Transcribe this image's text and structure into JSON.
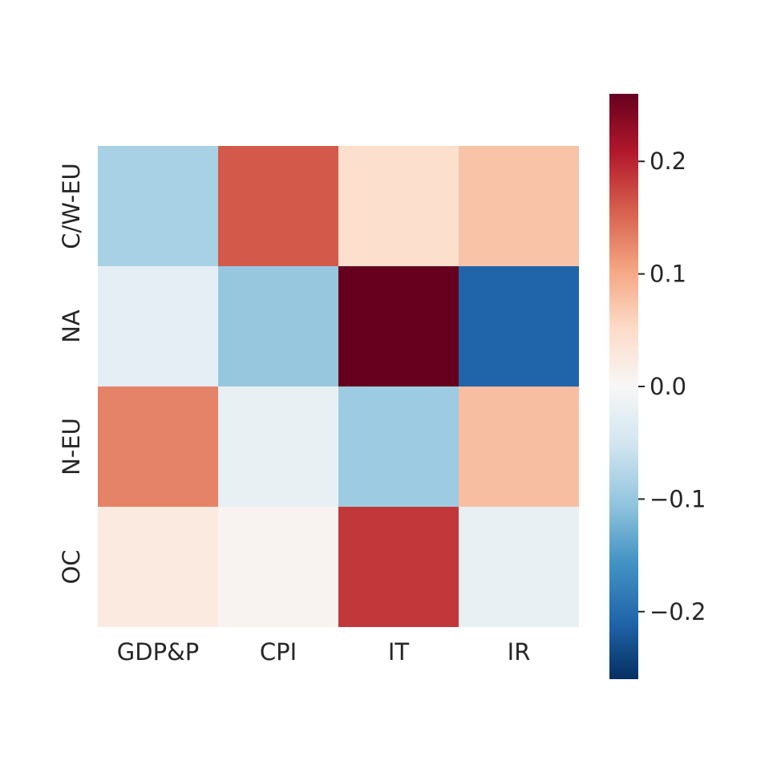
{
  "chart_data": {
    "type": "heatmap",
    "title": "",
    "xlabel": "",
    "ylabel": "",
    "columns": [
      "GDP&P",
      "CPI",
      "IT",
      "IR"
    ],
    "rows": [
      "C/W-EU",
      "NA",
      "N-EU",
      "OC"
    ],
    "values": [
      [
        -0.085,
        0.16,
        0.045,
        0.075
      ],
      [
        -0.025,
        -0.1,
        0.26,
        -0.21
      ],
      [
        0.13,
        -0.02,
        -0.095,
        0.08
      ],
      [
        0.025,
        0.008,
        0.185,
        -0.02
      ]
    ],
    "colormap": "RdBu_r",
    "vmin": -0.26,
    "vmax": 0.26,
    "colorbar": {
      "ticks": [
        0.2,
        0.1,
        0.0,
        -0.1,
        -0.2
      ],
      "tick_labels": [
        "0.2",
        "0.1",
        "0.0",
        "−0.1",
        "−0.2"
      ],
      "position": "right"
    },
    "grid": false
  }
}
